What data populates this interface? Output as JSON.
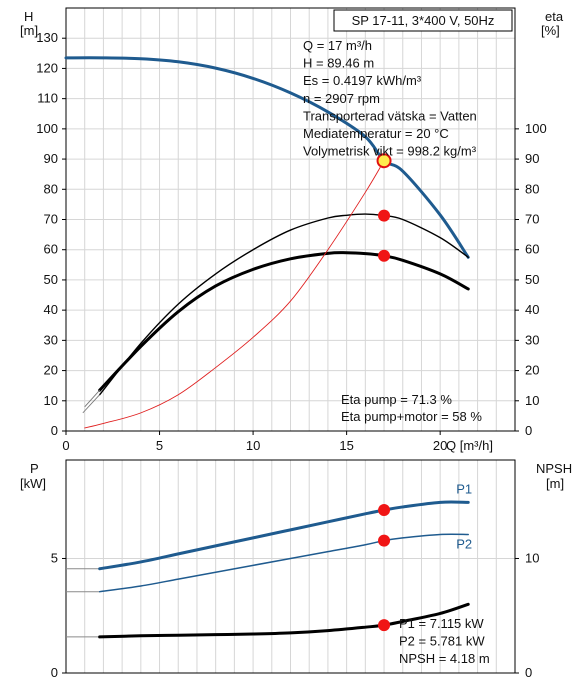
{
  "chart_data": [
    {
      "type": "line",
      "title": "SP 17-11, 3*400 V, 50Hz",
      "xlabel": "Q [m³/h]",
      "ylabel_left": [
        "H",
        "[m]"
      ],
      "ylabel_right": [
        "eta",
        "[%]"
      ],
      "xlim": [
        0,
        24
      ],
      "ylim_left": [
        0,
        140
      ],
      "ylim_right": [
        0,
        140
      ],
      "x_ticks": [
        0,
        5,
        10,
        15,
        20
      ],
      "y_ticks_left": [
        0,
        10,
        20,
        30,
        40,
        50,
        60,
        70,
        80,
        90,
        100,
        110,
        120,
        130
      ],
      "y_ticks_right": [
        0,
        10,
        20,
        30,
        40,
        50,
        60,
        70,
        80,
        90,
        100
      ],
      "grid": true,
      "series": [
        {
          "x": [
            0,
            2,
            4,
            6,
            8,
            10,
            12,
            14,
            16,
            17,
            18,
            20,
            21.5
          ],
          "y": [
            123.5,
            123.5,
            123.2,
            122.2,
            120.1,
            116.7,
            111.9,
            105.6,
            97.4,
            89.46,
            86.0,
            71.5,
            57.5
          ],
          "color": "#1f5b8f",
          "axis": "left"
        },
        {
          "x": [
            1.8,
            4,
            6,
            8,
            10,
            12,
            14,
            15,
            16,
            17,
            18,
            20,
            21.5
          ],
          "y": [
            12,
            29,
            42,
            52,
            60,
            66.5,
            70.5,
            71.4,
            71.8,
            71.3,
            70,
            64,
            57.5
          ],
          "color": "#000000",
          "axis": "right"
        },
        {
          "x": [
            1.8,
            4,
            6,
            8,
            10,
            12,
            14,
            15,
            16,
            17,
            18,
            20,
            21.5
          ],
          "y": [
            13.5,
            28,
            39.5,
            48,
            53.5,
            57,
            58.8,
            59,
            58.7,
            58,
            56.5,
            52,
            47
          ],
          "color": "#000000",
          "axis": "right"
        },
        {
          "x": [
            1,
            2,
            4,
            6,
            8,
            10,
            12,
            14,
            16,
            17
          ],
          "y": [
            1,
            2.5,
            6,
            12,
            21,
            31,
            43,
            60,
            79,
            89.46
          ],
          "color": "#e02020",
          "axis": "left"
        }
      ],
      "markers": [
        {
          "x": 17,
          "y": 89.46,
          "style": "yellow"
        },
        {
          "x": 17,
          "y": 71.3,
          "style": "red"
        },
        {
          "x": 17,
          "y": 58,
          "style": "red"
        }
      ],
      "info_lines": [
        "Q = 17 m³/h",
        "H = 89.46 m",
        "Es = 0.4197 kWh/m³",
        "n = 2907 rpm",
        "Transporterad vätska = Vatten",
        "Mediatemperatur = 20 °C",
        "Volymetrisk vikt = 998.2 kg/m³"
      ],
      "eta_lines": [
        "Eta pump = 71.3 %",
        "Eta pump+motor = 58 %"
      ]
    },
    {
      "type": "line",
      "ylabel_left": [
        "P",
        "[kW]"
      ],
      "ylabel_right": [
        "NPSH",
        "[m]"
      ],
      "xlim": [
        0,
        24
      ],
      "ylim_left": [
        0,
        9.3
      ],
      "ylim_right": [
        0,
        18.6
      ],
      "y_ticks_left": [
        0,
        5
      ],
      "y_ticks_right": [
        0,
        10
      ],
      "grid": true,
      "series": [
        {
          "name": "P1",
          "x": [
            0,
            1.8,
            4,
            6,
            8,
            10,
            12,
            14,
            16,
            17,
            18,
            20,
            21.5
          ],
          "y": [
            4.55,
            4.55,
            4.85,
            5.2,
            5.55,
            5.9,
            6.25,
            6.6,
            6.95,
            7.115,
            7.25,
            7.45,
            7.45
          ],
          "color": "#1f5b8f",
          "axis": "left"
        },
        {
          "name": "P2",
          "x": [
            0,
            1.8,
            4,
            6,
            8,
            10,
            12,
            14,
            16,
            17,
            18,
            20,
            21.5
          ],
          "y": [
            3.55,
            3.55,
            3.8,
            4.1,
            4.4,
            4.7,
            5.0,
            5.3,
            5.6,
            5.781,
            5.9,
            6.05,
            6.05
          ],
          "color": "#1f5b8f",
          "axis": "left"
        },
        {
          "x": [
            0,
            1.8,
            4,
            6,
            8,
            10,
            12,
            14,
            16,
            17,
            18,
            20,
            21.5
          ],
          "y": [
            3.15,
            3.15,
            3.25,
            3.3,
            3.35,
            3.4,
            3.5,
            3.7,
            4.0,
            4.18,
            4.5,
            5.2,
            6.0
          ],
          "color": "#000000",
          "axis": "right"
        }
      ],
      "markers": [
        {
          "x": 17,
          "y": 7.115,
          "axis": "left",
          "style": "red"
        },
        {
          "x": 17,
          "y": 5.781,
          "axis": "left",
          "style": "red"
        },
        {
          "x": 17,
          "y": 4.18,
          "axis": "right",
          "style": "red"
        }
      ],
      "info_lines": [
        "P1 = 7.115 kW",
        "P2 = 5.781 kW",
        "NPSH = 4.18 m"
      ]
    }
  ]
}
